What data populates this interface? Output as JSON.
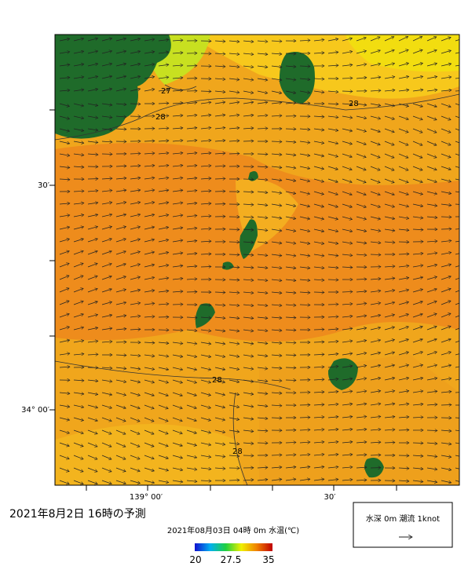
{
  "map": {
    "title": "2021年8月2日 16時の予測",
    "lat_labels": [
      "30′",
      "34° 00′"
    ],
    "lon_labels": [
      "139° 00′",
      "30′"
    ],
    "contour_labels": [
      "27",
      "28",
      "28",
      "28",
      "28"
    ],
    "colorbar": {
      "caption": "2021年08月03日 04時 0m 水温(℃)",
      "ticks": [
        "20",
        "27.5",
        "35"
      ]
    },
    "legend": "水深 0m 潮流 1knot"
  }
}
